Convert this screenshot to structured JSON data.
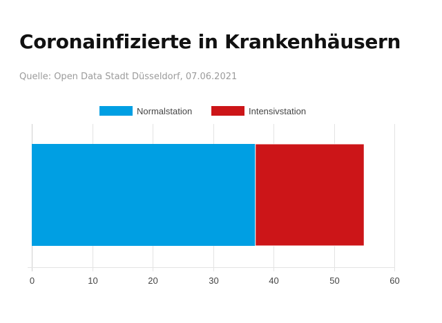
{
  "header": {
    "title": "Coronainfizierte in Krankenhäusern",
    "source": "Quelle: Open Data Stadt Düsseldorf, 07.06.2021"
  },
  "chart_data": {
    "type": "bar",
    "orientation": "horizontal",
    "stacked": true,
    "categories": [
      ""
    ],
    "series": [
      {
        "name": "Normalstation",
        "values": [
          37
        ],
        "color": "#009fe3"
      },
      {
        "name": "Intensivstation",
        "values": [
          18
        ],
        "color": "#cc1518"
      }
    ],
    "x_ticks": [
      "0",
      "10",
      "20",
      "30",
      "40",
      "50",
      "60"
    ],
    "xlim": [
      0,
      60
    ],
    "grid": true,
    "legend_position": "top-center",
    "title": "Coronainfizierte in Krankenhäusern",
    "subtitle": "Quelle: Open Data Stadt Düsseldorf, 07.06.2021",
    "xlabel": "",
    "ylabel": ""
  }
}
